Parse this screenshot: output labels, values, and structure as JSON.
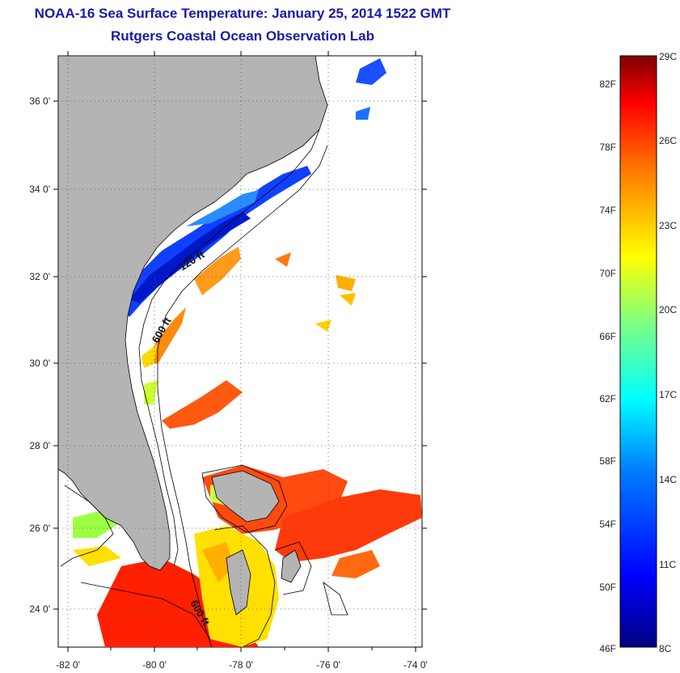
{
  "header": {
    "title": "NOAA-16 Sea Surface Temperature:  January 25, 2014 1522 GMT",
    "subtitle": "Rutgers Coastal Ocean Observation Lab"
  },
  "map": {
    "lon_ticks": [
      "-82 0'",
      "-80 0'",
      "-78 0'",
      "-76 0'",
      "-74 0'"
    ],
    "lat_ticks": [
      "36 0'",
      "34 0'",
      "32 0'",
      "30 0'",
      "28 0'",
      "26 0'",
      "24 0'"
    ],
    "contour_labels": [
      "120 ft",
      "600 ft",
      "600 ft"
    ],
    "colors": {
      "land": "#b4b4b4",
      "nodata": "#ffffff"
    }
  },
  "colorbar": {
    "fahrenheit_labels": [
      "82F",
      "78F",
      "74F",
      "70F",
      "66F",
      "62F",
      "58F",
      "54F",
      "50F",
      "46F"
    ],
    "celsius_labels": [
      "29C",
      "26C",
      "23C",
      "20C",
      "17C",
      "14C",
      "11C",
      "8C"
    ],
    "range_c": [
      8,
      29
    ],
    "stops": [
      "#00007f",
      "#0000ff",
      "#007fff",
      "#00ffff",
      "#7fff7f",
      "#ffff00",
      "#ff7f00",
      "#ff0000",
      "#7f0000"
    ]
  }
}
